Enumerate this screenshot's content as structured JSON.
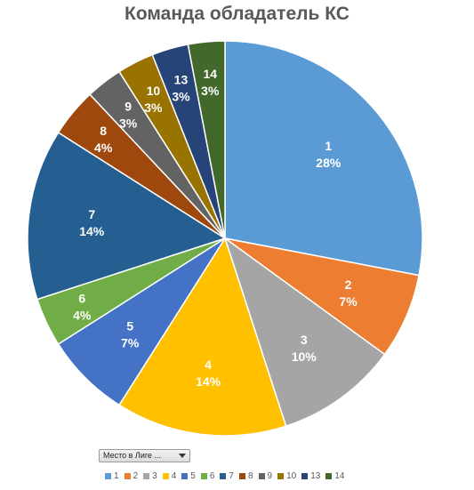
{
  "chart_data": {
    "type": "pie",
    "title": "Команда обладатель КС",
    "start_angle_deg": 0,
    "direction": "clockwise",
    "slices": [
      {
        "label": "1",
        "value": 28,
        "percent_label": "28%",
        "color": "#5b9bd5"
      },
      {
        "label": "2",
        "value": 7,
        "percent_label": "7%",
        "color": "#ed7d31"
      },
      {
        "label": "3",
        "value": 10,
        "percent_label": "10%",
        "color": "#a5a5a5"
      },
      {
        "label": "4",
        "value": 14,
        "percent_label": "14%",
        "color": "#ffc000"
      },
      {
        "label": "5",
        "value": 7,
        "percent_label": "7%",
        "color": "#4472c4"
      },
      {
        "label": "6",
        "value": 4,
        "percent_label": "4%",
        "color": "#70ad47"
      },
      {
        "label": "7",
        "value": 14,
        "percent_label": "14%",
        "color": "#255e91"
      },
      {
        "label": "8",
        "value": 4,
        "percent_label": "4%",
        "color": "#9e480e"
      },
      {
        "label": "9",
        "value": 3,
        "percent_label": "3%",
        "color": "#636363"
      },
      {
        "label": "10",
        "value": 3,
        "percent_label": "3%",
        "color": "#997300"
      },
      {
        "label": "13",
        "value": 3,
        "percent_label": "3%",
        "color": "#264478"
      },
      {
        "label": "14",
        "value": 3,
        "percent_label": "3%",
        "color": "#43682b"
      }
    ],
    "legend": {
      "placement": "bottom",
      "field_button_label": "Место в Лиге ..."
    }
  }
}
